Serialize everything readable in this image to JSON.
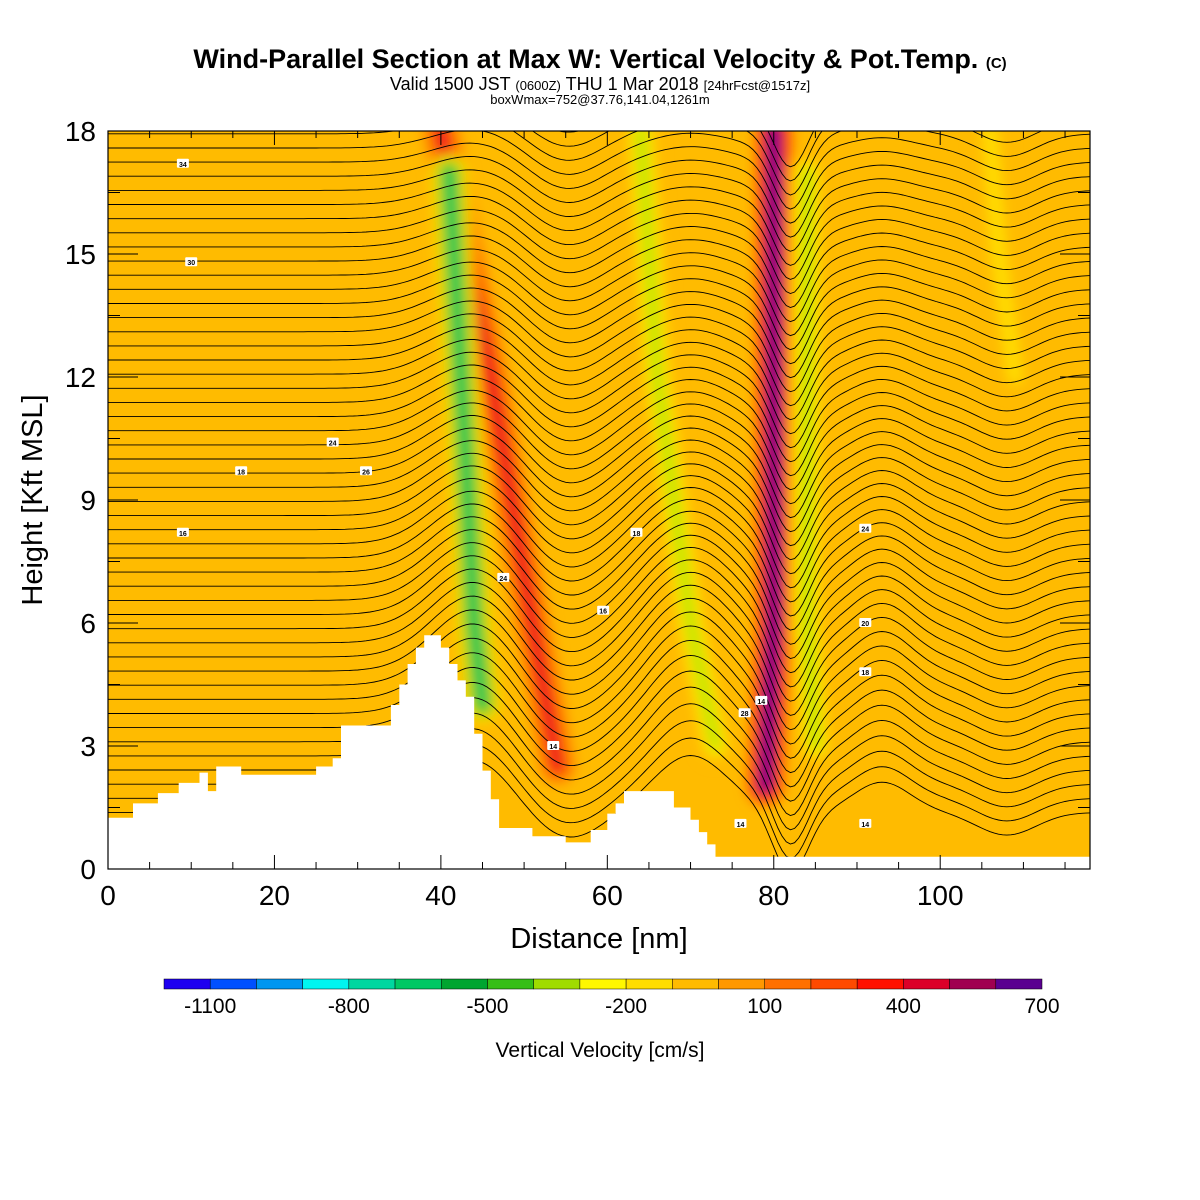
{
  "title": {
    "main": "Wind-Parallel Section at Max W: Vertical Velocity & Pot.Temp.",
    "copyright": "(C)",
    "valid_prefix": "Valid 1500 JST",
    "valid_utc": "(0600Z)",
    "valid_date": "THU 1 Mar 2018",
    "forecast": "[24hrFcst@1517z]",
    "box": "boxWmax=752@37.76,141.04,1261m"
  },
  "chart_data": {
    "type": "heatmap",
    "xlabel": "Distance [nm]",
    "ylabel": "Height [Kft MSL]",
    "xlim": [
      0,
      118
    ],
    "ylim": [
      0,
      18
    ],
    "x_ticks": [
      "0",
      "20",
      "40",
      "60",
      "80",
      "100"
    ],
    "x_tick_values": [
      0,
      20,
      40,
      60,
      80,
      100
    ],
    "y_ticks": [
      "0",
      "3",
      "6",
      "9",
      "12",
      "15",
      "18"
    ],
    "y_tick_values": [
      0,
      3,
      6,
      9,
      12,
      15,
      18
    ],
    "terrain": [
      [
        0,
        1.25
      ],
      [
        3,
        1.25
      ],
      [
        3,
        1.6
      ],
      [
        6,
        1.6
      ],
      [
        6,
        1.85
      ],
      [
        8.5,
        1.85
      ],
      [
        8.5,
        2.1
      ],
      [
        11,
        2.1
      ],
      [
        11,
        2.35
      ],
      [
        12,
        2.35
      ],
      [
        12,
        1.9
      ],
      [
        13,
        1.9
      ],
      [
        13,
        2.5
      ],
      [
        16,
        2.5
      ],
      [
        16,
        2.3
      ],
      [
        17,
        2.3
      ],
      [
        25,
        2.3
      ],
      [
        25,
        2.5
      ],
      [
        27,
        2.5
      ],
      [
        27,
        2.7
      ],
      [
        28,
        2.7
      ],
      [
        28,
        3.5
      ],
      [
        34,
        3.5
      ],
      [
        34,
        4.0
      ],
      [
        35,
        4.0
      ],
      [
        35,
        4.5
      ],
      [
        36,
        4.5
      ],
      [
        36,
        5.0
      ],
      [
        37,
        5.0
      ],
      [
        37,
        5.4
      ],
      [
        38,
        5.4
      ],
      [
        38,
        5.7
      ],
      [
        40,
        5.7
      ],
      [
        40,
        5.4
      ],
      [
        41,
        5.4
      ],
      [
        41,
        5.0
      ],
      [
        42,
        5.0
      ],
      [
        42,
        4.6
      ],
      [
        43,
        4.6
      ],
      [
        43,
        4.2
      ],
      [
        44,
        4.2
      ],
      [
        44,
        3.3
      ],
      [
        45,
        3.3
      ],
      [
        45,
        2.4
      ],
      [
        46,
        2.4
      ],
      [
        46,
        1.7
      ],
      [
        47,
        1.7
      ],
      [
        47,
        1.0
      ],
      [
        51,
        1.0
      ],
      [
        51,
        0.8
      ],
      [
        55,
        0.8
      ],
      [
        55,
        0.65
      ],
      [
        58,
        0.65
      ],
      [
        58,
        0.95
      ],
      [
        60,
        0.95
      ],
      [
        60,
        1.35
      ],
      [
        61,
        1.35
      ],
      [
        61,
        1.6
      ],
      [
        62,
        1.6
      ],
      [
        62,
        1.9
      ],
      [
        68,
        1.9
      ],
      [
        68,
        1.5
      ],
      [
        70,
        1.5
      ],
      [
        70,
        1.2
      ],
      [
        71,
        1.2
      ],
      [
        71,
        0.9
      ],
      [
        72,
        0.9
      ],
      [
        72,
        0.6
      ],
      [
        73,
        0.6
      ],
      [
        73,
        0.3
      ],
      [
        118,
        0.3
      ]
    ],
    "vertical_velocity_features": [
      {
        "kind": "updraft",
        "axis": [
          [
            40,
            18
          ],
          [
            46,
            12
          ],
          [
            51,
            6
          ],
          [
            54,
            2.5
          ]
        ],
        "peak_cm_s": 400
      },
      {
        "kind": "downdraft",
        "axis": [
          [
            41,
            17
          ],
          [
            43,
            10
          ],
          [
            44,
            6
          ],
          [
            45,
            4
          ]
        ],
        "peak_cm_s": -700
      },
      {
        "kind": "downdraft",
        "axis": [
          [
            64,
            18
          ],
          [
            66,
            12
          ],
          [
            70,
            6
          ],
          [
            73,
            3
          ]
        ],
        "peak_cm_s": -400
      },
      {
        "kind": "updraft",
        "axis": [
          [
            80,
            18
          ],
          [
            80,
            12
          ],
          [
            80,
            6
          ],
          [
            79,
            2
          ]
        ],
        "peak_cm_s": 752
      },
      {
        "kind": "downdraft",
        "axis": [
          [
            84,
            17
          ],
          [
            84,
            12
          ],
          [
            84,
            6
          ],
          [
            85,
            3
          ]
        ],
        "peak_cm_s": -400
      },
      {
        "kind": "downdraft",
        "axis": [
          [
            106,
            18
          ],
          [
            107,
            15
          ],
          [
            109,
            12
          ]
        ],
        "peak_cm_s": -200
      }
    ],
    "theta_label_samples": [
      {
        "x": 9,
        "y": 17.2,
        "label": "34"
      },
      {
        "x": 10,
        "y": 14.8,
        "label": "30"
      },
      {
        "x": 9,
        "y": 8.2,
        "label": "16"
      },
      {
        "x": 16,
        "y": 9.7,
        "label": "18"
      },
      {
        "x": 27,
        "y": 10.4,
        "label": "24"
      },
      {
        "x": 31,
        "y": 9.7,
        "label": "26"
      },
      {
        "x": 78.5,
        "y": 4.1,
        "label": "14"
      },
      {
        "x": 76,
        "y": 1.1,
        "label": "14"
      },
      {
        "x": 91,
        "y": 1.1,
        "label": "14"
      },
      {
        "x": 91,
        "y": 8.3,
        "label": "24"
      },
      {
        "x": 91,
        "y": 6.0,
        "label": "20"
      },
      {
        "x": 91,
        "y": 4.8,
        "label": "18"
      },
      {
        "x": 63.5,
        "y": 8.2,
        "label": "18"
      },
      {
        "x": 59.5,
        "y": 6.3,
        "label": "16"
      },
      {
        "x": 47.5,
        "y": 7.1,
        "label": "24"
      },
      {
        "x": 76.5,
        "y": 3.8,
        "label": "28"
      },
      {
        "x": 53.5,
        "y": 3.0,
        "label": "14"
      }
    ],
    "colorbar": {
      "label": "Vertical Velocity [cm/s]",
      "tick_labels": [
        "-1100",
        "-800",
        "-500",
        "-200",
        "100",
        "400",
        "700"
      ],
      "colors": [
        "#1e00f0",
        "#0050ff",
        "#0096f0",
        "#00f5f0",
        "#00d7a0",
        "#00c864",
        "#00a530",
        "#36be17",
        "#a0dc00",
        "#fff700",
        "#ffdd00",
        "#ffbb00",
        "#ff9800",
        "#ff7000",
        "#ff4a00",
        "#ff1000",
        "#dc0028",
        "#a00050",
        "#5a0090"
      ]
    }
  }
}
